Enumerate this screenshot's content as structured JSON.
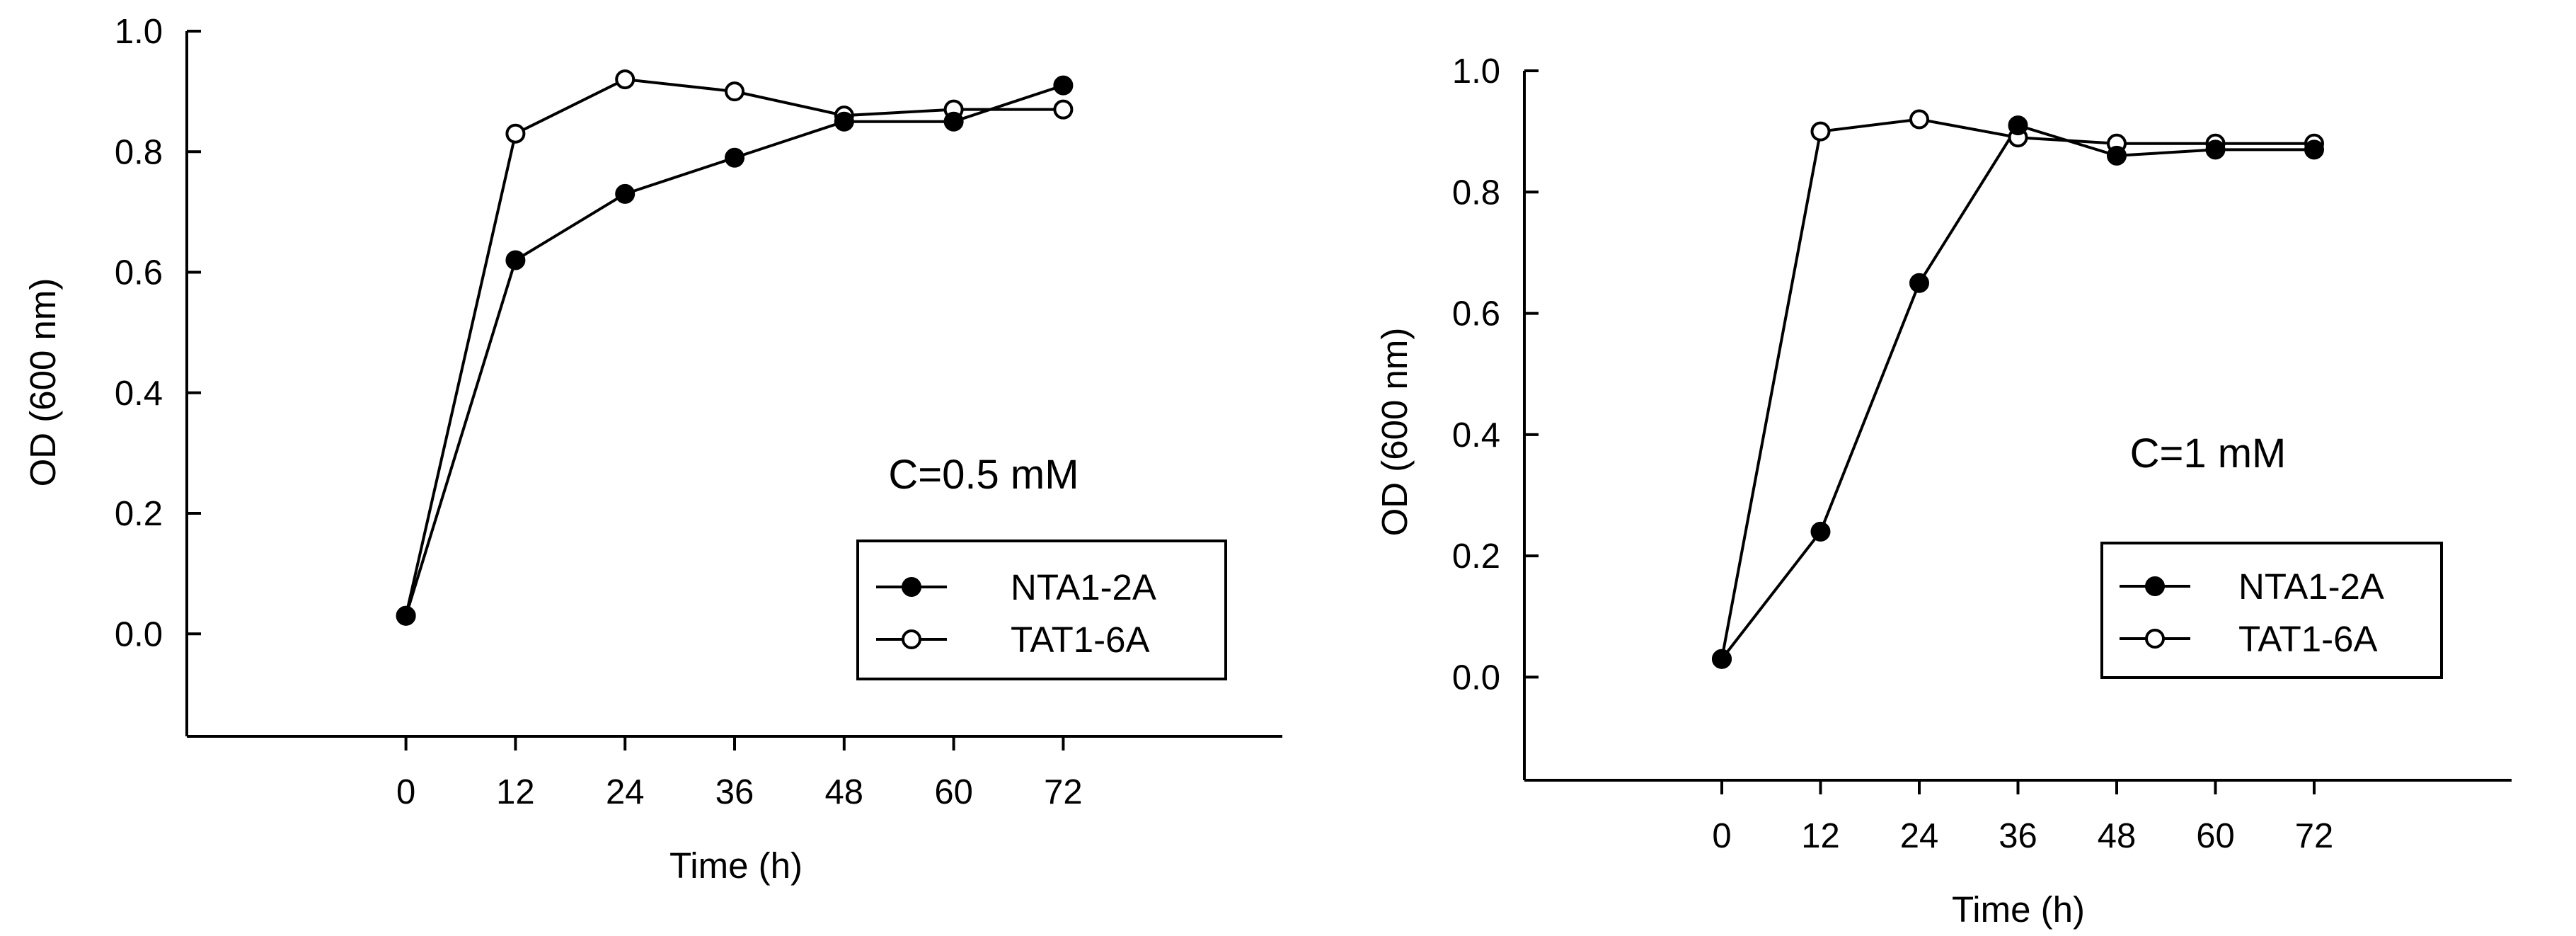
{
  "chart_data": [
    {
      "type": "line",
      "title": "",
      "xlabel": "Time (h)",
      "ylabel": "OD (600 nm)",
      "annotation": "C=0.5 mM",
      "xlim": [
        -24,
        96
      ],
      "ylim": [
        -0.17,
        1.0
      ],
      "x_ticks": [
        0,
        12,
        24,
        36,
        48,
        60,
        72
      ],
      "x_tick_labels": [
        "0",
        "12",
        "24",
        "36",
        "48",
        "60",
        "72"
      ],
      "y_ticks": [
        0.0,
        0.2,
        0.4,
        0.6,
        0.8,
        1.0
      ],
      "y_tick_labels": [
        "0.0",
        "0.2",
        "0.4",
        "0.6",
        "0.8",
        "1.0"
      ],
      "grid": false,
      "legend_position": "bottom-right",
      "x": [
        0,
        12,
        24,
        36,
        48,
        60,
        72
      ],
      "series": [
        {
          "name": "NTA1-2A",
          "marker": "filled-circle",
          "values": [
            0.03,
            0.62,
            0.73,
            0.79,
            0.85,
            0.85,
            0.91
          ]
        },
        {
          "name": "TAT1-6A",
          "marker": "open-circle",
          "values": [
            0.03,
            0.83,
            0.92,
            0.9,
            0.86,
            0.87,
            0.87
          ]
        }
      ]
    },
    {
      "type": "line",
      "title": "",
      "xlabel": "Time (h)",
      "ylabel": "OD (600 nm)",
      "annotation": "C=1 mM",
      "xlim": [
        -24,
        96
      ],
      "ylim": [
        -0.17,
        1.0
      ],
      "x_ticks": [
        0,
        12,
        24,
        36,
        48,
        60,
        72
      ],
      "x_tick_labels": [
        "0",
        "12",
        "24",
        "36",
        "48",
        "60",
        "72"
      ],
      "y_ticks": [
        0.0,
        0.2,
        0.4,
        0.6,
        0.8,
        1.0
      ],
      "y_tick_labels": [
        "0.0",
        "0.2",
        "0.4",
        "0.6",
        "0.8",
        "1.0"
      ],
      "grid": false,
      "legend_position": "bottom-right",
      "x": [
        0,
        12,
        24,
        36,
        48,
        60,
        72
      ],
      "series": [
        {
          "name": "NTA1-2A",
          "marker": "filled-circle",
          "values": [
            0.03,
            0.24,
            0.65,
            0.91,
            0.86,
            0.87,
            0.87
          ]
        },
        {
          "name": "TAT1-6A",
          "marker": "open-circle",
          "values": [
            0.03,
            0.9,
            0.92,
            0.89,
            0.88,
            0.88,
            0.88
          ]
        }
      ]
    }
  ],
  "colors": {
    "axis": "#000000",
    "line": "#000000",
    "marker_filled": "#000000",
    "marker_open_fill": "#ffffff",
    "background": "#ffffff"
  }
}
